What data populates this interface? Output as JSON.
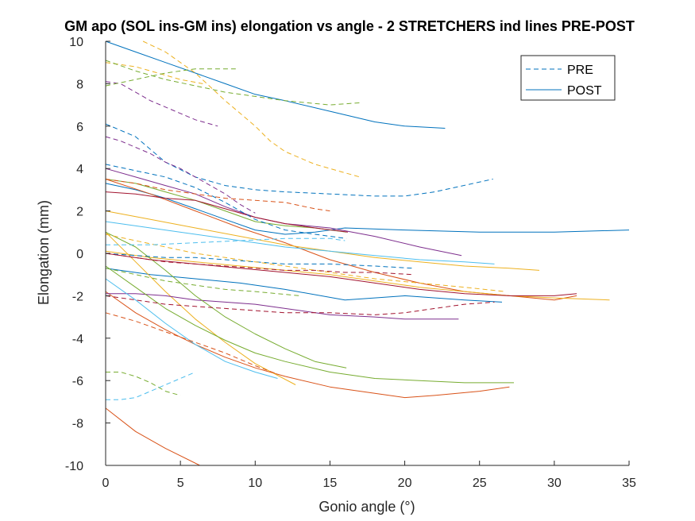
{
  "chart_data": {
    "type": "line",
    "title": "GM apo (SOL ins-GM ins) elongation vs angle - 2 STRETCHERS ind lines PRE-POST",
    "xlabel": "Gonio angle (°)",
    "ylabel": "Elongation (mm)",
    "xlim": [
      0,
      35
    ],
    "ylim": [
      -10,
      10
    ],
    "xticks": [
      0,
      5,
      10,
      15,
      20,
      25,
      30,
      35
    ],
    "yticks": [
      -10,
      -8,
      -6,
      -4,
      -2,
      0,
      2,
      4,
      6,
      8,
      10
    ],
    "grid": false,
    "legend": {
      "position": "top-right",
      "entries": [
        {
          "label": "PRE",
          "style": "dashed",
          "color": "#0072BD"
        },
        {
          "label": "POST",
          "style": "solid",
          "color": "#0072BD"
        }
      ]
    },
    "series": [
      {
        "style": "solid",
        "color": "#0072BD",
        "x": [
          0,
          2,
          4,
          6,
          8,
          10,
          12,
          15,
          18,
          20,
          22.7
        ],
        "y": [
          10,
          9.5,
          9.0,
          8.5,
          8.0,
          7.5,
          7.2,
          6.7,
          6.2,
          6.0,
          5.9
        ]
      },
      {
        "style": "solid",
        "color": "#0072BD",
        "x": [
          0,
          2,
          4,
          6,
          8,
          10,
          12,
          14,
          16,
          20,
          25,
          30,
          35
        ],
        "y": [
          3.3,
          3.0,
          2.6,
          2.1,
          1.6,
          1.1,
          0.9,
          1.0,
          1.2,
          1.1,
          1.0,
          1.0,
          1.1
        ]
      },
      {
        "style": "solid",
        "color": "#0072BD",
        "x": [
          0,
          3,
          6,
          9,
          12,
          16,
          20,
          24,
          26.5
        ],
        "y": [
          -0.7,
          -1.0,
          -1.2,
          -1.4,
          -1.7,
          -2.2,
          -2.0,
          -2.2,
          -2.3
        ]
      },
      {
        "style": "solid",
        "color": "#D95319",
        "x": [
          0,
          3,
          6,
          9,
          12,
          15,
          18,
          21,
          24,
          27,
          30,
          31.5
        ],
        "y": [
          3.5,
          2.8,
          2.0,
          1.2,
          0.5,
          -0.3,
          -0.9,
          -1.4,
          -1.8,
          -2.0,
          -2.2,
          -2.0
        ]
      },
      {
        "style": "solid",
        "color": "#D95319",
        "x": [
          0,
          2,
          4,
          6,
          8,
          10,
          12,
          15,
          18,
          20,
          22,
          25,
          27
        ],
        "y": [
          -1.8,
          -2.8,
          -3.6,
          -4.3,
          -4.9,
          -5.4,
          -5.8,
          -6.3,
          -6.6,
          -6.8,
          -6.7,
          -6.5,
          -6.3
        ]
      },
      {
        "style": "solid",
        "color": "#D95319",
        "x": [
          0,
          2,
          4,
          6.3
        ],
        "y": [
          -7.3,
          -8.4,
          -9.2,
          -10
        ]
      },
      {
        "style": "solid",
        "color": "#EDB120",
        "x": [
          0,
          3,
          6,
          9,
          12,
          15,
          18,
          21,
          24,
          27,
          29
        ],
        "y": [
          2.0,
          1.6,
          1.2,
          0.8,
          0.4,
          0.1,
          -0.2,
          -0.4,
          -0.6,
          -0.7,
          -0.8
        ]
      },
      {
        "style": "solid",
        "color": "#EDB120",
        "x": [
          0,
          3,
          6,
          9,
          12,
          15,
          18,
          21,
          24,
          27,
          30,
          33.7
        ],
        "y": [
          0.1,
          -0.2,
          -0.4,
          -0.6,
          -0.8,
          -1.0,
          -1.3,
          -1.6,
          -1.8,
          -2.0,
          -2.1,
          -2.2
        ]
      },
      {
        "style": "solid",
        "color": "#EDB120",
        "x": [
          0,
          2,
          4,
          6,
          8,
          10,
          12.7
        ],
        "y": [
          1.0,
          -0.4,
          -1.8,
          -3.1,
          -4.2,
          -5.2,
          -6.2
        ]
      },
      {
        "style": "solid",
        "color": "#7E2F8E",
        "x": [
          0,
          2,
          4,
          6,
          8,
          10,
          12,
          15,
          18,
          21,
          23.8
        ],
        "y": [
          4.0,
          3.6,
          3.2,
          2.8,
          2.2,
          1.7,
          1.4,
          1.2,
          0.8,
          0.3,
          -0.1
        ]
      },
      {
        "style": "solid",
        "color": "#7E2F8E",
        "x": [
          0,
          2,
          4,
          6,
          8,
          10,
          12,
          15,
          18,
          20,
          23.6
        ],
        "y": [
          -1.9,
          -1.9,
          -2.0,
          -2.2,
          -2.3,
          -2.4,
          -2.6,
          -2.9,
          -3.0,
          -3.1,
          -3.1
        ]
      },
      {
        "style": "solid",
        "color": "#77AC30",
        "x": [
          0,
          2,
          4,
          6,
          8,
          10,
          12,
          14,
          16.1
        ],
        "y": [
          3.5,
          3.3,
          2.9,
          2.5,
          2.0,
          1.5,
          1.3,
          1.2,
          1.0
        ]
      },
      {
        "style": "solid",
        "color": "#77AC30",
        "x": [
          0,
          2,
          4,
          6,
          8,
          10,
          12,
          15,
          18,
          21,
          24,
          27.3
        ],
        "y": [
          -0.6,
          -1.6,
          -2.6,
          -3.4,
          -4.1,
          -4.7,
          -5.1,
          -5.6,
          -5.9,
          -6.0,
          -6.1,
          -6.1
        ]
      },
      {
        "style": "solid",
        "color": "#77AC30",
        "x": [
          0,
          2,
          4,
          6,
          8,
          10,
          12,
          14,
          16.1
        ],
        "y": [
          1.0,
          0.3,
          -0.8,
          -2.0,
          -3.0,
          -3.8,
          -4.5,
          -5.1,
          -5.4
        ]
      },
      {
        "style": "solid",
        "color": "#4DBEEE",
        "x": [
          0,
          3,
          6,
          9,
          12,
          15,
          18,
          21,
          24,
          26
        ],
        "y": [
          1.5,
          1.2,
          0.9,
          0.6,
          0.3,
          0.1,
          -0.1,
          -0.3,
          -0.4,
          -0.5
        ]
      },
      {
        "style": "solid",
        "color": "#4DBEEE",
        "x": [
          0,
          2,
          4,
          6,
          8,
          10,
          11.5
        ],
        "y": [
          -1.2,
          -2.2,
          -3.3,
          -4.3,
          -5.1,
          -5.6,
          -5.9
        ]
      },
      {
        "style": "solid",
        "color": "#A2142F",
        "x": [
          0,
          3,
          6,
          9,
          12,
          15,
          18,
          21,
          24,
          27,
          30,
          31.5
        ],
        "y": [
          0.0,
          -0.3,
          -0.5,
          -0.7,
          -0.9,
          -1.1,
          -1.4,
          -1.7,
          -1.9,
          -2.0,
          -2.0,
          -1.9
        ]
      },
      {
        "style": "solid",
        "color": "#A2142F",
        "x": [
          0,
          2,
          4,
          6,
          8,
          10,
          12,
          14,
          16.2
        ],
        "y": [
          2.9,
          2.8,
          2.6,
          2.5,
          2.1,
          1.7,
          1.4,
          1.2,
          1.0
        ]
      },
      {
        "style": "dashed",
        "color": "#0072BD",
        "x": [
          0,
          2,
          4,
          6,
          8,
          10,
          12,
          15,
          18,
          20,
          22,
          25.9
        ],
        "y": [
          6.1,
          5.5,
          4.3,
          3.6,
          3.2,
          3.0,
          2.9,
          2.8,
          2.7,
          2.7,
          2.9,
          3.5
        ]
      },
      {
        "style": "dashed",
        "color": "#0072BD",
        "x": [
          0,
          2,
          4,
          6,
          8,
          10,
          12,
          14,
          16.1
        ],
        "y": [
          4.2,
          3.9,
          3.6,
          3.1,
          2.4,
          1.6,
          1.1,
          0.9,
          0.7
        ]
      },
      {
        "style": "dashed",
        "color": "#0072BD",
        "x": [
          0,
          2,
          4,
          6,
          8,
          10,
          12,
          15,
          18,
          20.5
        ],
        "y": [
          0.0,
          -0.1,
          -0.2,
          -0.2,
          -0.3,
          -0.4,
          -0.5,
          -0.5,
          -0.6,
          -0.7
        ]
      },
      {
        "style": "dashed",
        "color": "#D95319",
        "x": [
          0,
          2,
          4,
          6,
          8,
          10,
          12,
          14,
          15
        ],
        "y": [
          3.5,
          3.3,
          3.0,
          2.8,
          2.6,
          2.5,
          2.4,
          2.1,
          2.0
        ]
      },
      {
        "style": "dashed",
        "color": "#D95319",
        "x": [
          0,
          2,
          4,
          6,
          8,
          10,
          11.5
        ],
        "y": [
          -2.8,
          -3.2,
          -3.7,
          -4.2,
          -4.7,
          -5.3,
          -5.7
        ]
      },
      {
        "style": "dashed",
        "color": "#EDB120",
        "x": [
          2.5,
          4,
          6,
          8,
          10,
          11,
          12,
          14,
          17
        ],
        "y": [
          10,
          9.5,
          8.5,
          7.2,
          6.0,
          5.3,
          4.8,
          4.2,
          3.6
        ]
      },
      {
        "style": "dashed",
        "color": "#EDB120",
        "x": [
          0,
          2,
          4,
          5,
          6.5
        ],
        "y": [
          9.0,
          8.8,
          8.4,
          8.2,
          8.0
        ]
      },
      {
        "style": "dashed",
        "color": "#EDB120",
        "x": [
          0,
          2,
          4,
          6,
          8,
          10,
          12,
          15,
          18,
          21,
          24,
          26.7
        ],
        "y": [
          0.9,
          0.6,
          0.3,
          0.0,
          -0.2,
          -0.4,
          -0.6,
          -0.9,
          -1.2,
          -1.4,
          -1.6,
          -1.8
        ]
      },
      {
        "style": "dashed",
        "color": "#7E2F8E",
        "x": [
          0,
          1,
          2,
          3,
          4,
          5,
          6,
          7.5
        ],
        "y": [
          8.1,
          8.0,
          7.6,
          7.2,
          6.9,
          6.6,
          6.3,
          6.0
        ]
      },
      {
        "style": "dashed",
        "color": "#7E2F8E",
        "x": [
          0,
          1,
          2,
          3,
          4,
          5,
          6,
          7,
          8,
          9,
          10
        ],
        "y": [
          5.5,
          5.3,
          5.0,
          4.7,
          4.3,
          4.0,
          3.6,
          3.2,
          2.8,
          2.3,
          1.9
        ]
      },
      {
        "style": "dashed",
        "color": "#77AC30",
        "x": [
          0,
          2,
          4,
          6,
          8.7
        ],
        "y": [
          7.9,
          8.2,
          8.5,
          8.7,
          8.7
        ]
      },
      {
        "style": "dashed",
        "color": "#77AC30",
        "x": [
          0,
          2,
          4,
          6,
          8,
          10,
          12,
          15,
          17
        ],
        "y": [
          9.1,
          8.6,
          8.2,
          7.9,
          7.6,
          7.4,
          7.2,
          7.0,
          7.1
        ]
      },
      {
        "style": "dashed",
        "color": "#77AC30",
        "x": [
          0,
          1,
          2,
          3,
          4,
          5
        ],
        "y": [
          -5.6,
          -5.6,
          -5.8,
          -6.1,
          -6.5,
          -6.7
        ]
      },
      {
        "style": "dashed",
        "color": "#77AC30",
        "x": [
          0,
          2,
          4,
          6,
          8,
          10,
          13
        ],
        "y": [
          -0.7,
          -1.0,
          -1.3,
          -1.5,
          -1.7,
          -1.8,
          -2.0
        ]
      },
      {
        "style": "dashed",
        "color": "#4DBEEE",
        "x": [
          0,
          1,
          2,
          3,
          4,
          5,
          6
        ],
        "y": [
          -6.9,
          -6.9,
          -6.8,
          -6.5,
          -6.2,
          -5.9,
          -5.6
        ]
      },
      {
        "style": "dashed",
        "color": "#4DBEEE",
        "x": [
          0,
          3,
          6,
          9,
          12,
          15,
          16
        ],
        "y": [
          0.4,
          0.4,
          0.5,
          0.6,
          0.7,
          0.7,
          0.6
        ]
      },
      {
        "style": "dashed",
        "color": "#A2142F",
        "x": [
          0,
          2,
          4,
          6,
          8,
          10,
          12,
          15,
          18,
          20,
          22,
          24,
          26
        ],
        "y": [
          -2.0,
          -2.2,
          -2.4,
          -2.5,
          -2.6,
          -2.7,
          -2.8,
          -2.8,
          -2.9,
          -2.8,
          -2.6,
          -2.4,
          -2.3
        ]
      },
      {
        "style": "dashed",
        "color": "#A2142F",
        "x": [
          0,
          2,
          4,
          6,
          8,
          10,
          12,
          14,
          16,
          18,
          20.5
        ],
        "y": [
          0.0,
          -0.2,
          -0.4,
          -0.5,
          -0.6,
          -0.7,
          -0.8,
          -0.8,
          -0.9,
          -0.9,
          -1.0
        ]
      }
    ]
  }
}
